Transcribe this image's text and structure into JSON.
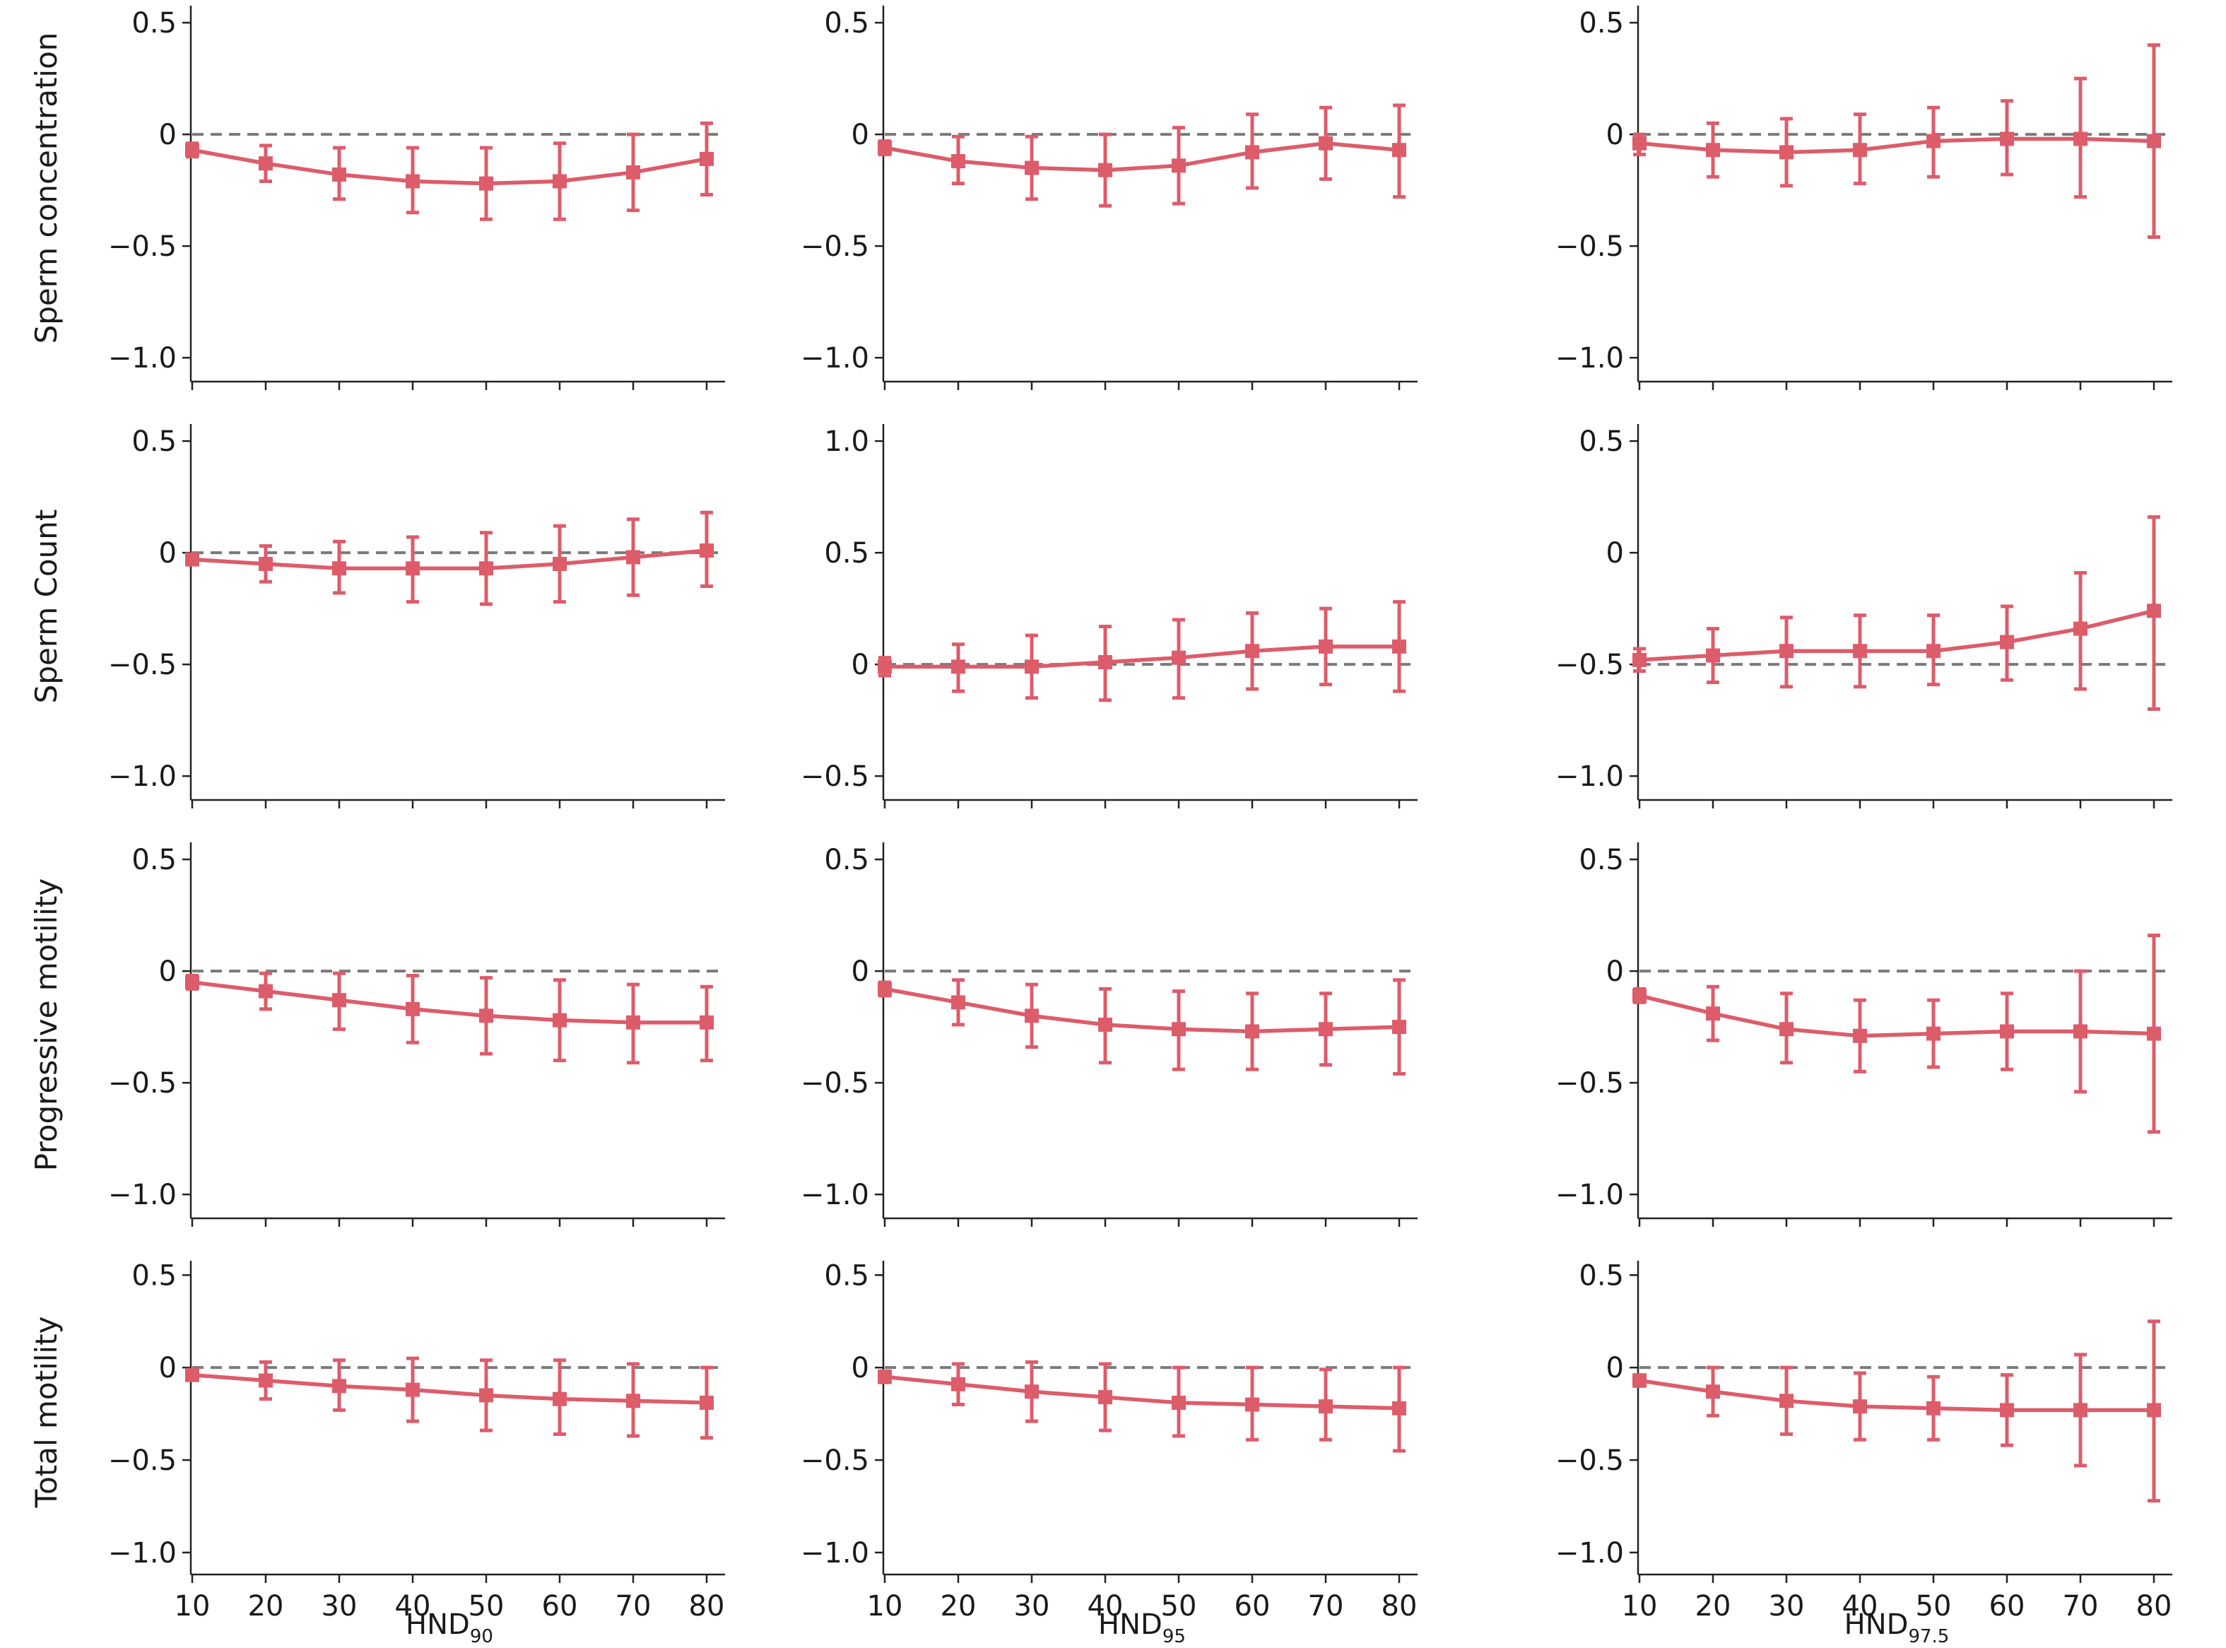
{
  "colors": {
    "series": "#dd5c6a",
    "reference": "#7a7a7a",
    "axis": "#222222"
  },
  "chart_data": {
    "type": "line",
    "x": [
      10,
      20,
      30,
      40,
      50,
      60,
      70,
      80
    ],
    "x_tick_labels": [
      "10",
      "20",
      "30",
      "40",
      "50",
      "60",
      "70",
      "80"
    ],
    "columns": [
      {
        "xlabel": "HND",
        "subscript": "90"
      },
      {
        "xlabel": "HND",
        "subscript": "95"
      },
      {
        "xlabel": "HND",
        "subscript": "97.5"
      }
    ],
    "rows": [
      {
        "ylabel": "Sperm concentration"
      },
      {
        "ylabel": "Sperm Count"
      },
      {
        "ylabel": "Progressive motility"
      },
      {
        "ylabel": "Total motility"
      }
    ],
    "marker": "square",
    "grid": false,
    "panels": [
      {
        "row": 0,
        "col": 0,
        "ylim": [
          -1.05,
          0.57
        ],
        "yticks": [
          0.5,
          0,
          -0.5,
          -1.0
        ],
        "ytick_labels": [
          "0.5",
          "0",
          "−0.5",
          "−1.0"
        ],
        "reference": 0,
        "y": [
          -0.07,
          -0.13,
          -0.18,
          -0.21,
          -0.22,
          -0.21,
          -0.17,
          -0.11
        ],
        "lower": [
          -0.1,
          -0.21,
          -0.29,
          -0.35,
          -0.38,
          -0.38,
          -0.34,
          -0.27
        ],
        "upper": [
          -0.04,
          -0.05,
          -0.06,
          -0.06,
          -0.06,
          -0.04,
          0.0,
          0.05
        ]
      },
      {
        "row": 0,
        "col": 1,
        "ylim": [
          -1.05,
          0.57
        ],
        "yticks": [
          0.5,
          0,
          -0.5,
          -1.0
        ],
        "ytick_labels": [
          "0.5",
          "0",
          "−0.5",
          "−1.0"
        ],
        "reference": 0,
        "y": [
          -0.06,
          -0.12,
          -0.15,
          -0.16,
          -0.14,
          -0.08,
          -0.04,
          -0.07
        ],
        "lower": [
          -0.09,
          -0.22,
          -0.29,
          -0.32,
          -0.31,
          -0.24,
          -0.2,
          -0.28
        ],
        "upper": [
          -0.03,
          -0.01,
          -0.01,
          0.0,
          0.03,
          0.09,
          0.12,
          0.13
        ]
      },
      {
        "row": 0,
        "col": 2,
        "ylim": [
          -1.05,
          0.57
        ],
        "yticks": [
          0.5,
          0,
          -0.5,
          -1.0
        ],
        "ytick_labels": [
          "0.5",
          "0",
          "−0.5",
          "−1.0"
        ],
        "reference": 0,
        "y": [
          -0.04,
          -0.07,
          -0.08,
          -0.07,
          -0.03,
          -0.02,
          -0.02,
          -0.03
        ],
        "lower": [
          -0.09,
          -0.19,
          -0.23,
          -0.22,
          -0.19,
          -0.18,
          -0.28,
          -0.46
        ],
        "upper": [
          0.0,
          0.05,
          0.07,
          0.09,
          0.12,
          0.15,
          0.25,
          0.4
        ]
      },
      {
        "row": 1,
        "col": 0,
        "ylim": [
          -1.05,
          0.57
        ],
        "yticks": [
          0.5,
          0,
          -0.5,
          -1.0
        ],
        "ytick_labels": [
          "0.5",
          "0",
          "−0.5",
          "−1.0"
        ],
        "reference": 0,
        "y": [
          -0.03,
          -0.05,
          -0.07,
          -0.07,
          -0.07,
          -0.05,
          -0.02,
          0.01
        ],
        "lower": [
          -0.05,
          -0.13,
          -0.18,
          -0.22,
          -0.23,
          -0.22,
          -0.19,
          -0.15
        ],
        "upper": [
          -0.01,
          0.03,
          0.05,
          0.07,
          0.09,
          0.12,
          0.15,
          0.18
        ]
      },
      {
        "row": 1,
        "col": 1,
        "ylim": [
          -0.55,
          1.07
        ],
        "yticks": [
          1.0,
          0.5,
          0,
          -0.5
        ],
        "ytick_labels": [
          "1.0",
          "0.5",
          "0",
          "−0.5"
        ],
        "reference": 0,
        "y": [
          -0.01,
          -0.01,
          -0.01,
          0.01,
          0.03,
          0.06,
          0.08,
          0.08
        ],
        "lower": [
          -0.05,
          -0.12,
          -0.15,
          -0.16,
          -0.15,
          -0.11,
          -0.09,
          -0.12
        ],
        "upper": [
          0.03,
          0.09,
          0.13,
          0.17,
          0.2,
          0.23,
          0.25,
          0.28
        ]
      },
      {
        "row": 1,
        "col": 2,
        "ylim": [
          -1.05,
          0.57
        ],
        "yticks": [
          0.5,
          0,
          -0.5,
          -1.0
        ],
        "ytick_labels": [
          "0.5",
          "0",
          "−0.5",
          "−1.0"
        ],
        "reference": -0.5,
        "y": [
          -0.48,
          -0.46,
          -0.44,
          -0.44,
          -0.44,
          -0.4,
          -0.34,
          -0.26
        ],
        "lower": [
          -0.53,
          -0.58,
          -0.6,
          -0.6,
          -0.59,
          -0.57,
          -0.61,
          -0.7
        ],
        "upper": [
          -0.43,
          -0.34,
          -0.29,
          -0.28,
          -0.28,
          -0.24,
          -0.09,
          0.16
        ]
      },
      {
        "row": 2,
        "col": 0,
        "ylim": [
          -1.05,
          0.57
        ],
        "yticks": [
          0.5,
          0,
          -0.5,
          -1.0
        ],
        "ytick_labels": [
          "0.5",
          "0",
          "−0.5",
          "−1.0"
        ],
        "reference": 0,
        "y": [
          -0.05,
          -0.09,
          -0.13,
          -0.17,
          -0.2,
          -0.22,
          -0.23,
          -0.23
        ],
        "lower": [
          -0.08,
          -0.17,
          -0.26,
          -0.32,
          -0.37,
          -0.4,
          -0.41,
          -0.4
        ],
        "upper": [
          -0.02,
          -0.01,
          -0.01,
          -0.02,
          -0.03,
          -0.04,
          -0.06,
          -0.07
        ]
      },
      {
        "row": 2,
        "col": 1,
        "ylim": [
          -1.05,
          0.57
        ],
        "yticks": [
          0.5,
          0,
          -0.5,
          -1.0
        ],
        "ytick_labels": [
          "0.5",
          "0",
          "−0.5",
          "−1.0"
        ],
        "reference": 0,
        "y": [
          -0.08,
          -0.14,
          -0.2,
          -0.24,
          -0.26,
          -0.27,
          -0.26,
          -0.25
        ],
        "lower": [
          -0.11,
          -0.24,
          -0.34,
          -0.41,
          -0.44,
          -0.44,
          -0.42,
          -0.46
        ],
        "upper": [
          -0.05,
          -0.04,
          -0.06,
          -0.08,
          -0.09,
          -0.1,
          -0.1,
          -0.04
        ]
      },
      {
        "row": 2,
        "col": 2,
        "ylim": [
          -1.05,
          0.57
        ],
        "yticks": [
          0.5,
          0,
          -0.5,
          -1.0
        ],
        "ytick_labels": [
          "0.5",
          "0",
          "−0.5",
          "−1.0"
        ],
        "reference": 0,
        "y": [
          -0.11,
          -0.19,
          -0.26,
          -0.29,
          -0.28,
          -0.27,
          -0.27,
          -0.28
        ],
        "lower": [
          -0.14,
          -0.31,
          -0.41,
          -0.45,
          -0.43,
          -0.44,
          -0.54,
          -0.72
        ],
        "upper": [
          -0.08,
          -0.07,
          -0.1,
          -0.13,
          -0.13,
          -0.1,
          0.0,
          0.16
        ]
      },
      {
        "row": 3,
        "col": 0,
        "ylim": [
          -1.05,
          0.57
        ],
        "yticks": [
          0.5,
          0,
          -0.5,
          -1.0
        ],
        "ytick_labels": [
          "0.5",
          "0",
          "−0.5",
          "−1.0"
        ],
        "reference": 0,
        "y": [
          -0.04,
          -0.07,
          -0.1,
          -0.12,
          -0.15,
          -0.17,
          -0.18,
          -0.19
        ],
        "lower": [
          -0.06,
          -0.17,
          -0.23,
          -0.29,
          -0.34,
          -0.36,
          -0.37,
          -0.38
        ],
        "upper": [
          -0.02,
          0.03,
          0.04,
          0.05,
          0.04,
          0.04,
          0.02,
          0.0
        ]
      },
      {
        "row": 3,
        "col": 1,
        "ylim": [
          -1.05,
          0.57
        ],
        "yticks": [
          0.5,
          0,
          -0.5,
          -1.0
        ],
        "ytick_labels": [
          "0.5",
          "0",
          "−0.5",
          "−1.0"
        ],
        "reference": 0,
        "y": [
          -0.05,
          -0.09,
          -0.13,
          -0.16,
          -0.19,
          -0.2,
          -0.21,
          -0.22
        ],
        "lower": [
          -0.08,
          -0.2,
          -0.29,
          -0.34,
          -0.37,
          -0.39,
          -0.39,
          -0.45
        ],
        "upper": [
          -0.02,
          0.02,
          0.03,
          0.02,
          0.0,
          0.0,
          -0.01,
          0.0
        ]
      },
      {
        "row": 3,
        "col": 2,
        "ylim": [
          -1.05,
          0.57
        ],
        "yticks": [
          0.5,
          0,
          -0.5,
          -1.0
        ],
        "ytick_labels": [
          "0.5",
          "0",
          "−0.5",
          "−1.0"
        ],
        "reference": 0,
        "y": [
          -0.07,
          -0.13,
          -0.18,
          -0.21,
          -0.22,
          -0.23,
          -0.23,
          -0.23
        ],
        "lower": [
          -0.1,
          -0.26,
          -0.36,
          -0.39,
          -0.39,
          -0.42,
          -0.53,
          -0.72
        ],
        "upper": [
          -0.04,
          0.0,
          0.0,
          -0.03,
          -0.05,
          -0.04,
          0.07,
          0.25
        ]
      }
    ]
  }
}
